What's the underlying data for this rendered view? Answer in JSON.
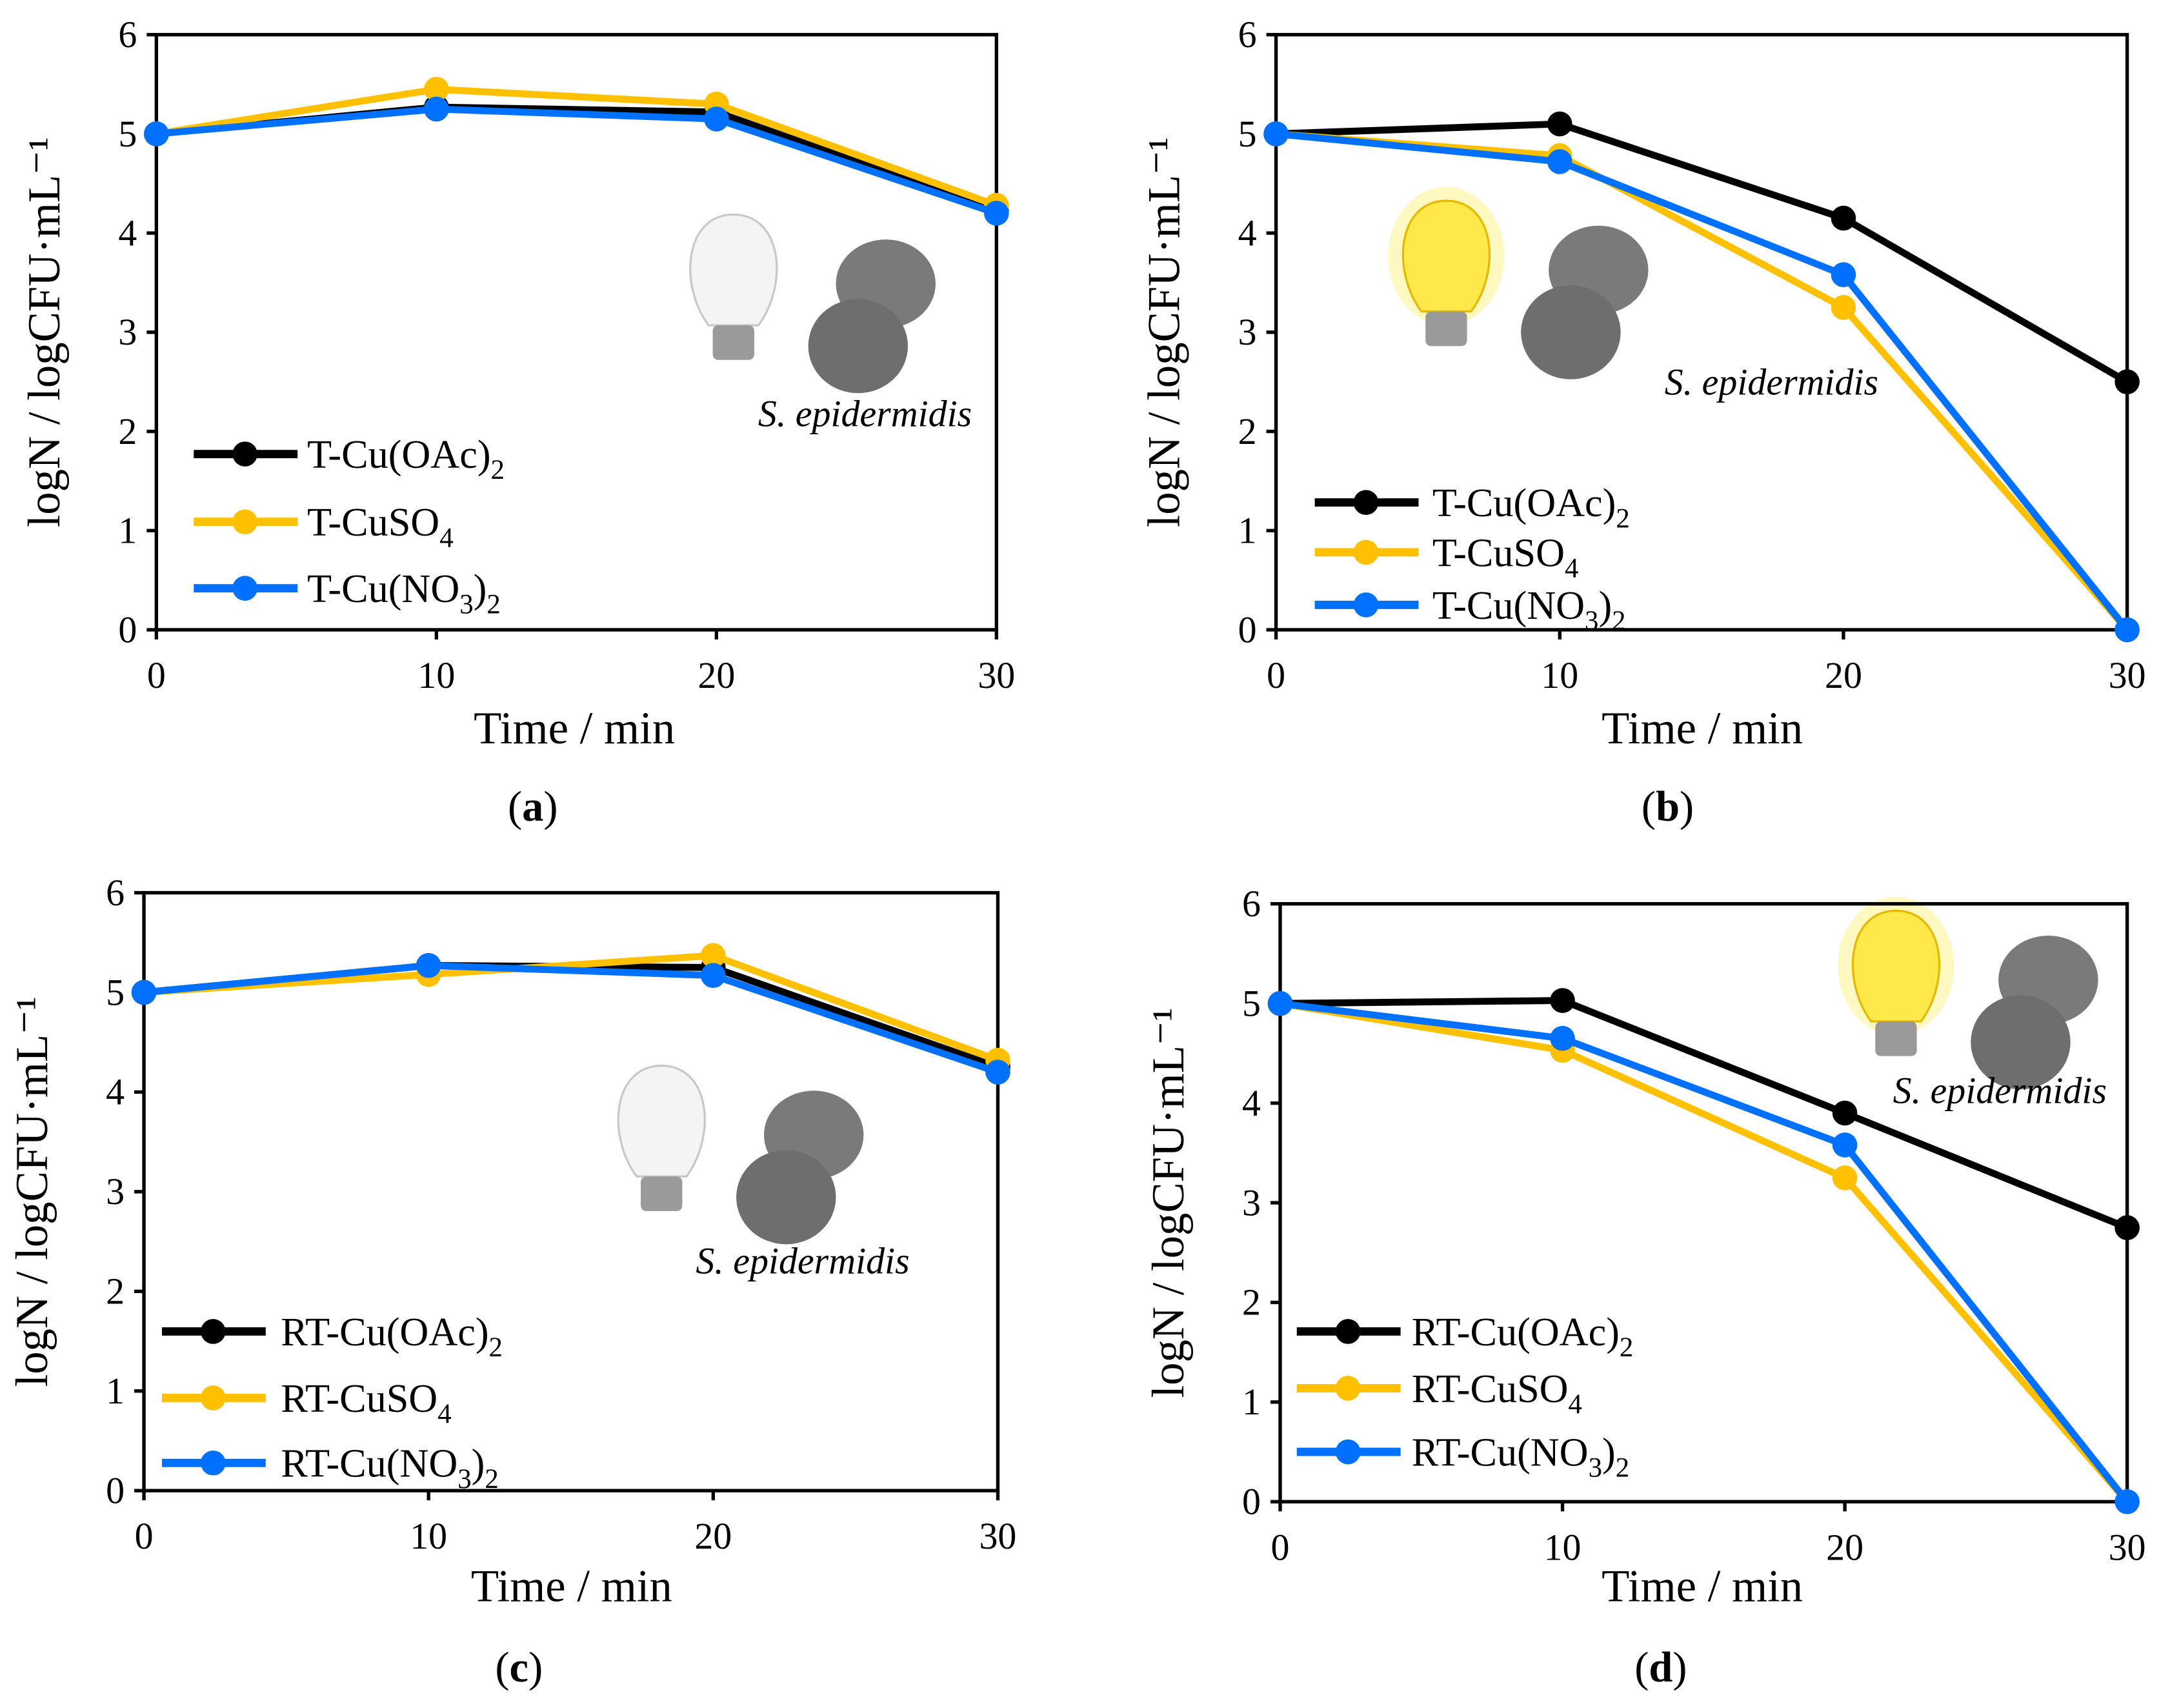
{
  "colors": {
    "black": "#000000",
    "yellow": "#FFC000",
    "blue": "#0070FF"
  },
  "chart_data": [
    {
      "type": "line",
      "panel_label": "a",
      "title": "",
      "xlabel": "Time / min",
      "ylabel": "logN / logCFU·mL⁻¹",
      "xlim": [
        0,
        30
      ],
      "ylim": [
        0,
        6
      ],
      "xticks": [
        "0",
        "10",
        "20",
        "30"
      ],
      "yticks": [
        "0",
        "1",
        "2",
        "3",
        "4",
        "5",
        "6"
      ],
      "annotation": "S. epidermidis",
      "light": "off",
      "legend": "bottom-left",
      "x": [
        0,
        10,
        20,
        30
      ],
      "series": [
        {
          "name": "T-Cu(OAc)2",
          "label": [
            [
              "T-Cu(OAc)",
              false
            ],
            [
              "2",
              true
            ]
          ],
          "color": "#000000",
          "values": [
            5.0,
            5.27,
            5.22,
            4.22
          ]
        },
        {
          "name": "T-CuSO4",
          "label": [
            [
              "T-CuSO",
              false
            ],
            [
              "4",
              true
            ]
          ],
          "color": "#FFC000",
          "values": [
            5.0,
            5.45,
            5.3,
            4.28
          ]
        },
        {
          "name": "T-Cu(NO3)2",
          "label": [
            [
              "T-Cu(NO",
              false
            ],
            [
              "3",
              true
            ],
            [
              ")",
              false
            ],
            [
              "2",
              true
            ]
          ],
          "color": "#0070FF",
          "values": [
            5.0,
            5.25,
            5.15,
            4.2
          ]
        }
      ]
    },
    {
      "type": "line",
      "panel_label": "b",
      "title": "",
      "xlabel": "Time / min",
      "ylabel": "logN / logCFU·mL⁻¹",
      "xlim": [
        0,
        30
      ],
      "ylim": [
        0,
        6
      ],
      "xticks": [
        "0",
        "10",
        "20",
        "30"
      ],
      "yticks": [
        "0",
        "1",
        "2",
        "3",
        "4",
        "5",
        "6"
      ],
      "annotation": "S. epidermidis",
      "light": "on",
      "legend": "bottom-left",
      "x": [
        0,
        10,
        20,
        30
      ],
      "series": [
        {
          "name": "T-Cu(OAc)2",
          "label": [
            [
              "T-Cu(OAc)",
              false
            ],
            [
              "2",
              true
            ]
          ],
          "color": "#000000",
          "values": [
            5.0,
            5.1,
            4.15,
            2.5
          ]
        },
        {
          "name": "T-CuSO4",
          "label": [
            [
              "T-CuSO",
              false
            ],
            [
              "4",
              true
            ]
          ],
          "color": "#FFC000",
          "values": [
            5.0,
            4.78,
            3.25,
            0.0
          ]
        },
        {
          "name": "T-Cu(NO3)2",
          "label": [
            [
              "T-Cu(NO",
              false
            ],
            [
              "3",
              true
            ],
            [
              ")",
              false
            ],
            [
              "2",
              true
            ]
          ],
          "color": "#0070FF",
          "values": [
            5.0,
            4.72,
            3.58,
            0.0
          ]
        }
      ]
    },
    {
      "type": "line",
      "panel_label": "c",
      "title": "",
      "xlabel": "Time / min",
      "ylabel": "logN / logCFU·mL⁻¹",
      "xlim": [
        0,
        30
      ],
      "ylim": [
        0,
        6
      ],
      "xticks": [
        "0",
        "10",
        "20",
        "30"
      ],
      "yticks": [
        "0",
        "1",
        "2",
        "3",
        "4",
        "5",
        "6"
      ],
      "annotation": "S. epidermidis",
      "light": "off",
      "legend": "bottom-left",
      "x": [
        0,
        10,
        20,
        30
      ],
      "series": [
        {
          "name": "RT-Cu(OAc)2",
          "label": [
            [
              "RT-Cu(OAc)",
              false
            ],
            [
              "2",
              true
            ]
          ],
          "color": "#000000",
          "values": [
            5.0,
            5.27,
            5.25,
            4.25
          ]
        },
        {
          "name": "RT-CuSO4",
          "label": [
            [
              "RT-CuSO",
              false
            ],
            [
              "4",
              true
            ]
          ],
          "color": "#FFC000",
          "values": [
            5.0,
            5.18,
            5.37,
            4.32
          ]
        },
        {
          "name": "RT-Cu(NO3)2",
          "label": [
            [
              "RT-Cu(NO",
              false
            ],
            [
              "3",
              true
            ],
            [
              ")",
              false
            ],
            [
              "2",
              true
            ]
          ],
          "color": "#0070FF",
          "values": [
            5.0,
            5.27,
            5.17,
            4.2
          ]
        }
      ]
    },
    {
      "type": "line",
      "panel_label": "d",
      "title": "",
      "xlabel": "Time / min",
      "ylabel": "logN / logCFU·mL⁻¹",
      "xlim": [
        0,
        30
      ],
      "ylim": [
        0,
        6
      ],
      "xticks": [
        "0",
        "10",
        "20",
        "30"
      ],
      "yticks": [
        "0",
        "1",
        "2",
        "3",
        "4",
        "5",
        "6"
      ],
      "annotation": "S. epidermidis",
      "light": "on",
      "legend": "bottom-left",
      "x": [
        0,
        10,
        20,
        30
      ],
      "series": [
        {
          "name": "RT-Cu(OAc)2",
          "label": [
            [
              "RT-Cu(OAc)",
              false
            ],
            [
              "2",
              true
            ]
          ],
          "color": "#000000",
          "values": [
            5.0,
            5.03,
            3.9,
            2.75
          ]
        },
        {
          "name": "RT-CuSO4",
          "label": [
            [
              "RT-CuSO",
              false
            ],
            [
              "4",
              true
            ]
          ],
          "color": "#FFC000",
          "values": [
            5.0,
            4.53,
            3.25,
            0.0
          ]
        },
        {
          "name": "RT-Cu(NO3)2",
          "label": [
            [
              "RT-Cu(NO",
              false
            ],
            [
              "3",
              true
            ],
            [
              ")",
              false
            ],
            [
              "2",
              true
            ]
          ],
          "color": "#0070FF",
          "values": [
            5.0,
            4.65,
            3.58,
            0.0
          ]
        }
      ]
    }
  ]
}
